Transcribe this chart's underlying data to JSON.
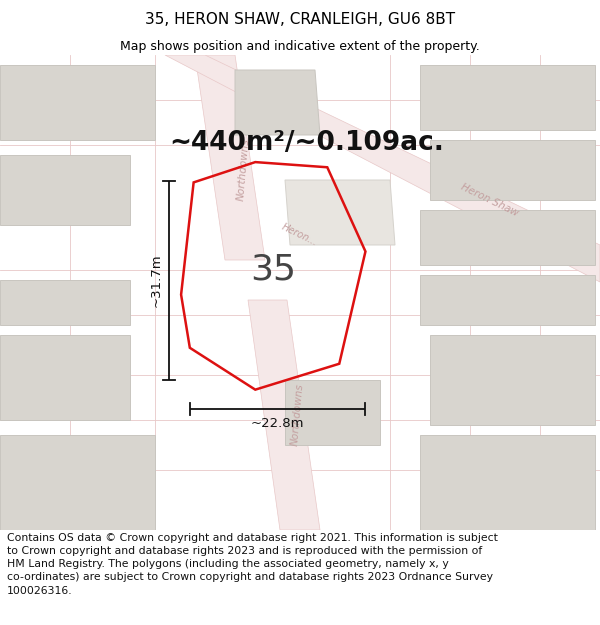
{
  "title": "35, HERON SHAW, CRANLEIGH, GU6 8BT",
  "subtitle": "Map shows position and indicative extent of the property.",
  "area_text": "~440m²/~0.109ac.",
  "label_35": "35",
  "dim_width": "~22.8m",
  "dim_height": "~31.7m",
  "footer": "Contains OS data © Crown copyright and database right 2021. This information is subject\nto Crown copyright and database rights 2023 and is reproduced with the permission of\nHM Land Registry. The polygons (including the associated geometry, namely x, y\nco-ordinates) are subject to Crown copyright and database rights 2023 Ordnance Survey\n100026316.",
  "map_bg": "#f7f5f2",
  "plot_color": "#dd1111",
  "road_fill": "#f5e8e8",
  "road_edge": "#e8c8c8",
  "block_color": "#d8d5cf",
  "block_edge": "#c8c5bf",
  "title_fontsize": 11,
  "subtitle_fontsize": 9,
  "area_fontsize": 19,
  "label_fontsize": 26,
  "dim_fontsize": 9.5,
  "footer_fontsize": 7.8,
  "road_label_color": "#c4a0a0",
  "road_label_fontsize": 7.5
}
